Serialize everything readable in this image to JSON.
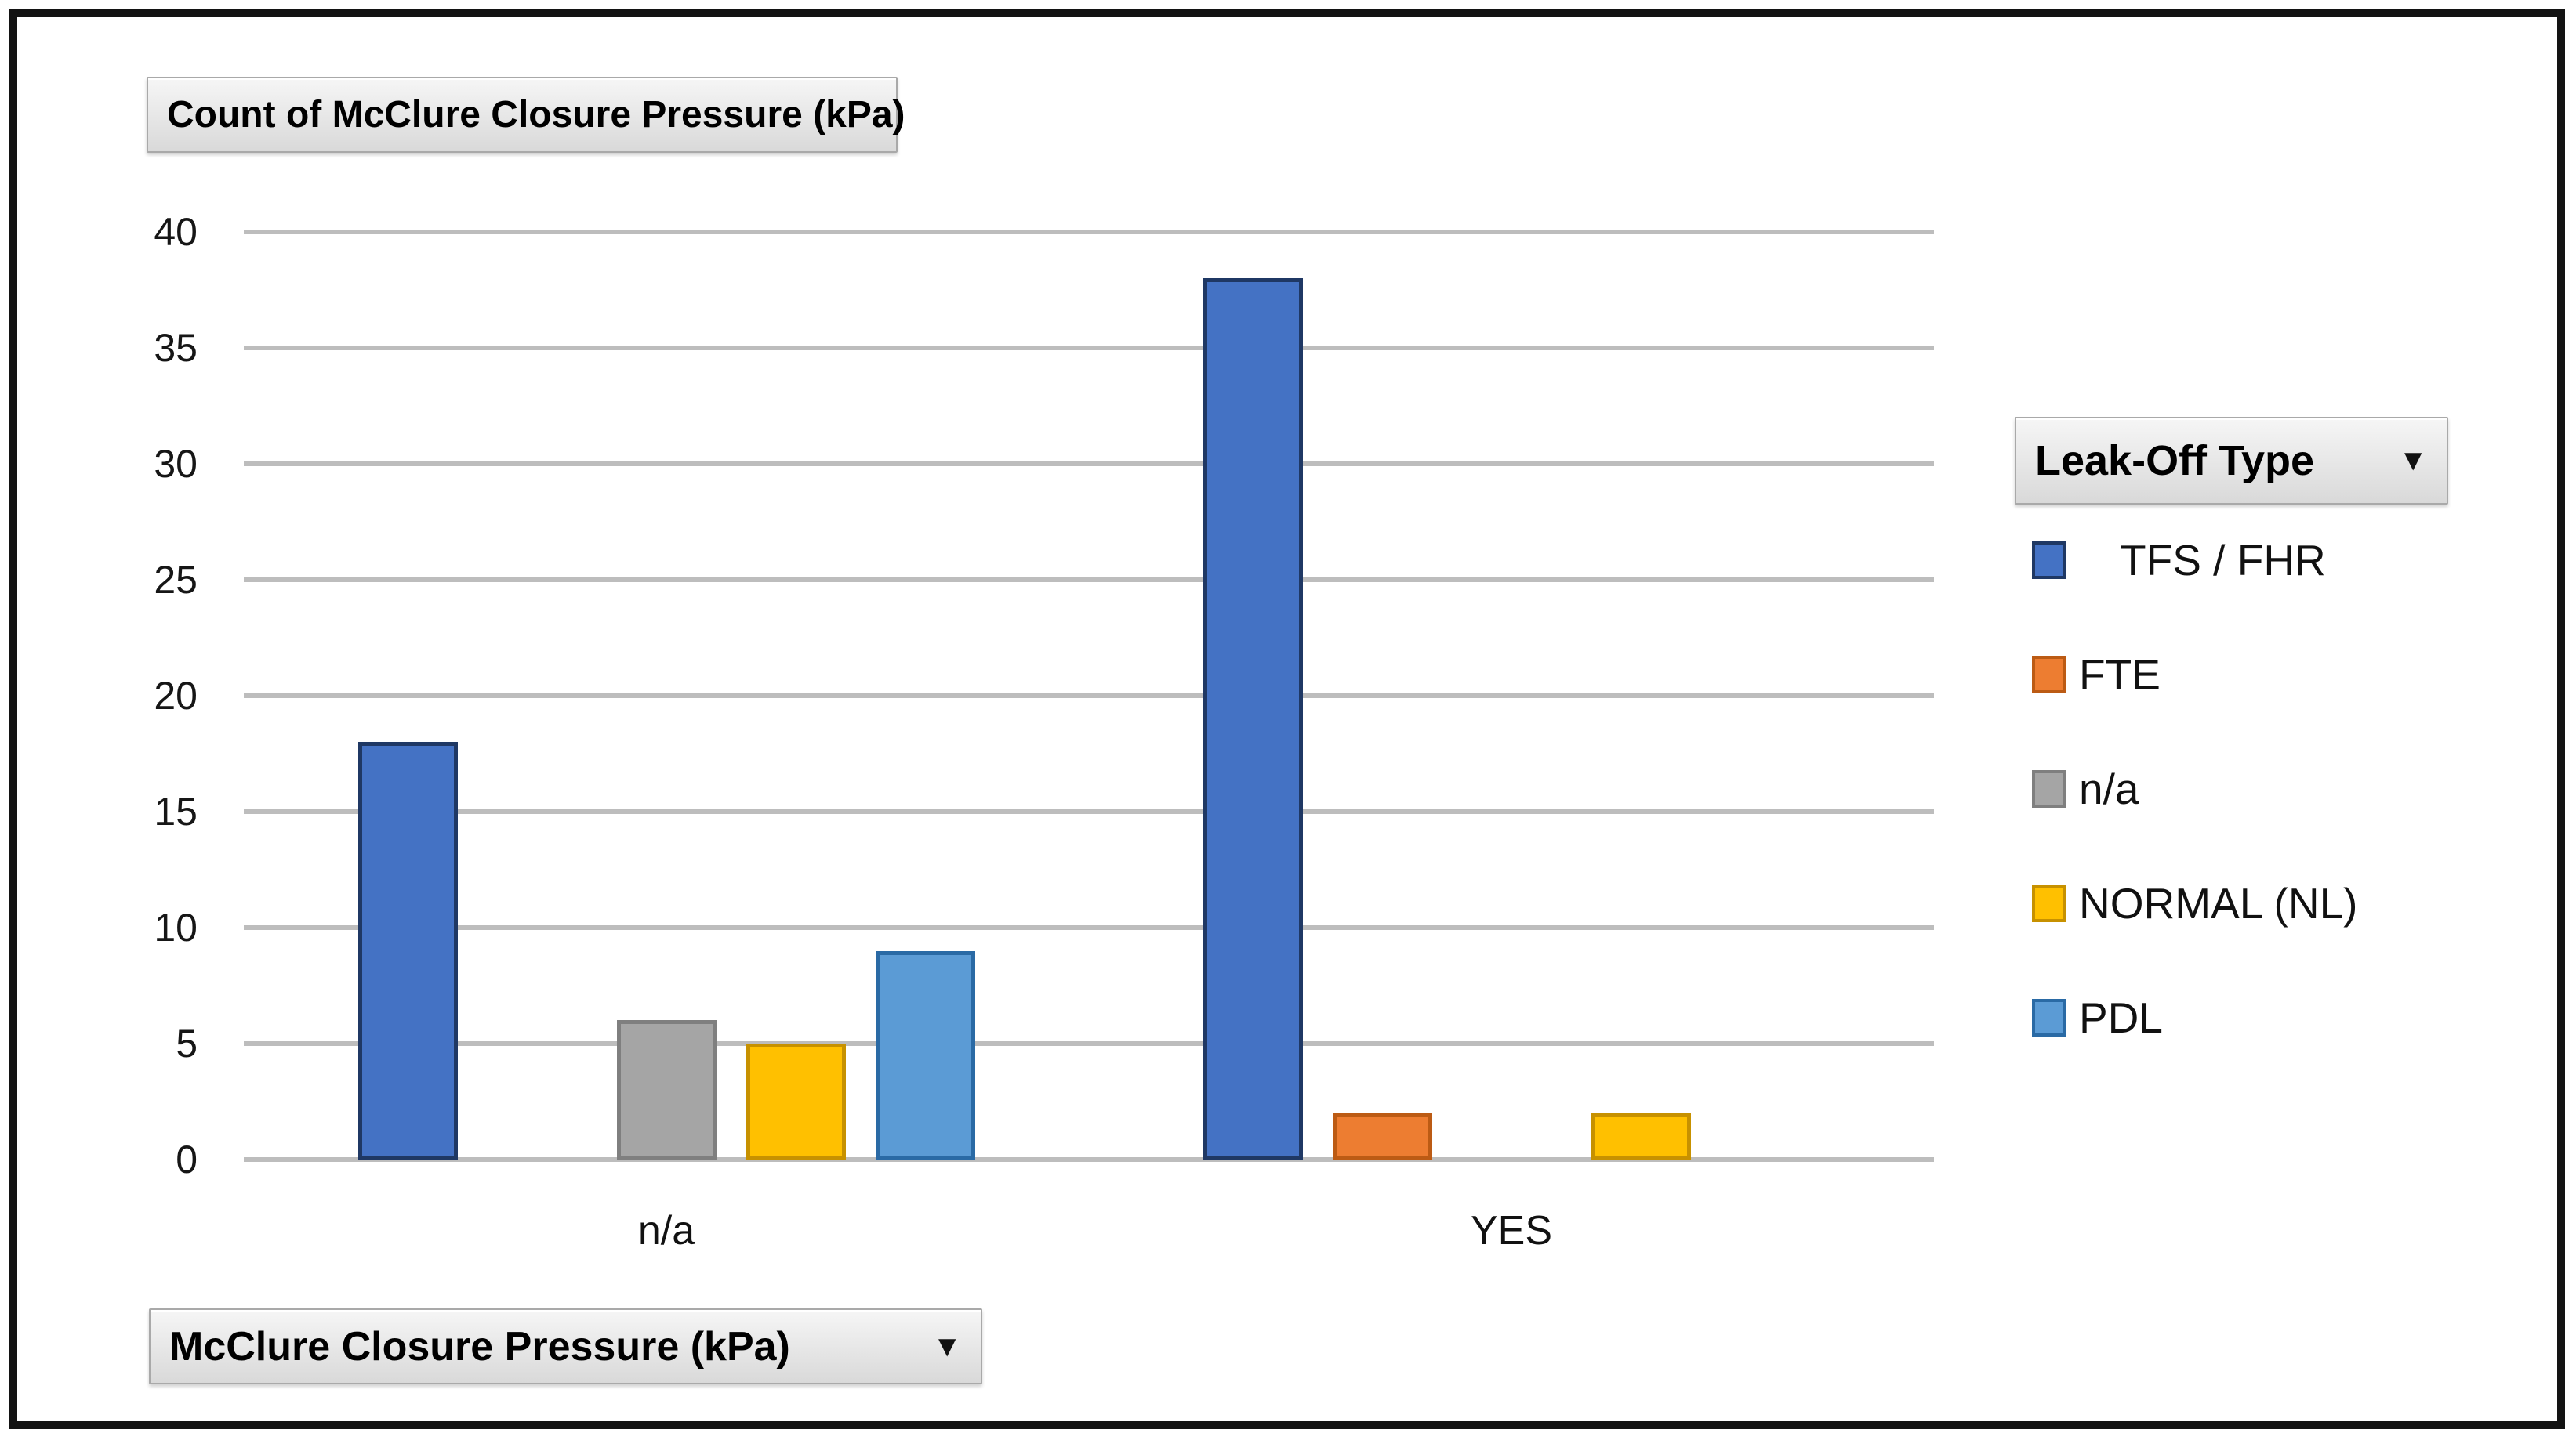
{
  "window": {
    "background": "#ffffff",
    "frame_border_color": "#131313"
  },
  "pivot_buttons": {
    "value_field": "Count of McClure Closure Pressure (kPa)",
    "legend_field": "Leak-Off Type",
    "axis_field": "McClure Closure Pressure (kPa)",
    "dropdown_glyph": "▼"
  },
  "chart_data": {
    "type": "bar",
    "title": "Count of McClure Closure Pressure (kPa)",
    "legend_title": "Leak-Off Type",
    "xlabel": "McClure Closure Pressure (kPa)",
    "ylabel": "",
    "categories": [
      "n/a",
      "YES"
    ],
    "series": [
      {
        "name": "TFS / FHR",
        "values": [
          18,
          38
        ],
        "color": "#4472C4",
        "border_color": "#1F3864"
      },
      {
        "name": "FTE",
        "values": [
          0,
          2
        ],
        "color": "#ED7D31",
        "border_color": "#BC5B14"
      },
      {
        "name": "n/a",
        "values": [
          6,
          0
        ],
        "color": "#A5A5A5",
        "border_color": "#7F7F7F"
      },
      {
        "name": "NORMAL (NL)",
        "values": [
          5,
          2
        ],
        "color": "#FFC000",
        "border_color": "#C79100"
      },
      {
        "name": "PDL",
        "values": [
          9,
          0
        ],
        "color": "#5B9BD5",
        "border_color": "#2A6AA5"
      }
    ],
    "ylim": [
      0,
      40
    ],
    "ytick_step": 5,
    "yticks": [
      0,
      5,
      10,
      15,
      20,
      25,
      30,
      35,
      40
    ],
    "grid": true,
    "gridline_color": "#BDBDBD",
    "legend_position": "right"
  }
}
